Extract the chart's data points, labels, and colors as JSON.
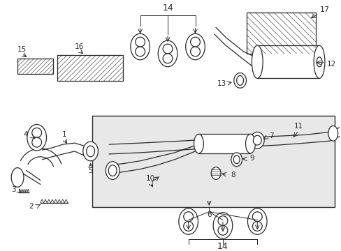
{
  "bg_color": "#ffffff",
  "box_bg": "#e8e8e8",
  "lc": "#2a2a2a",
  "lw": 0.9,
  "fig_w": 4.89,
  "fig_h": 3.6,
  "dpi": 100,
  "xlim": [
    0,
    489
  ],
  "ylim": [
    0,
    360
  ]
}
